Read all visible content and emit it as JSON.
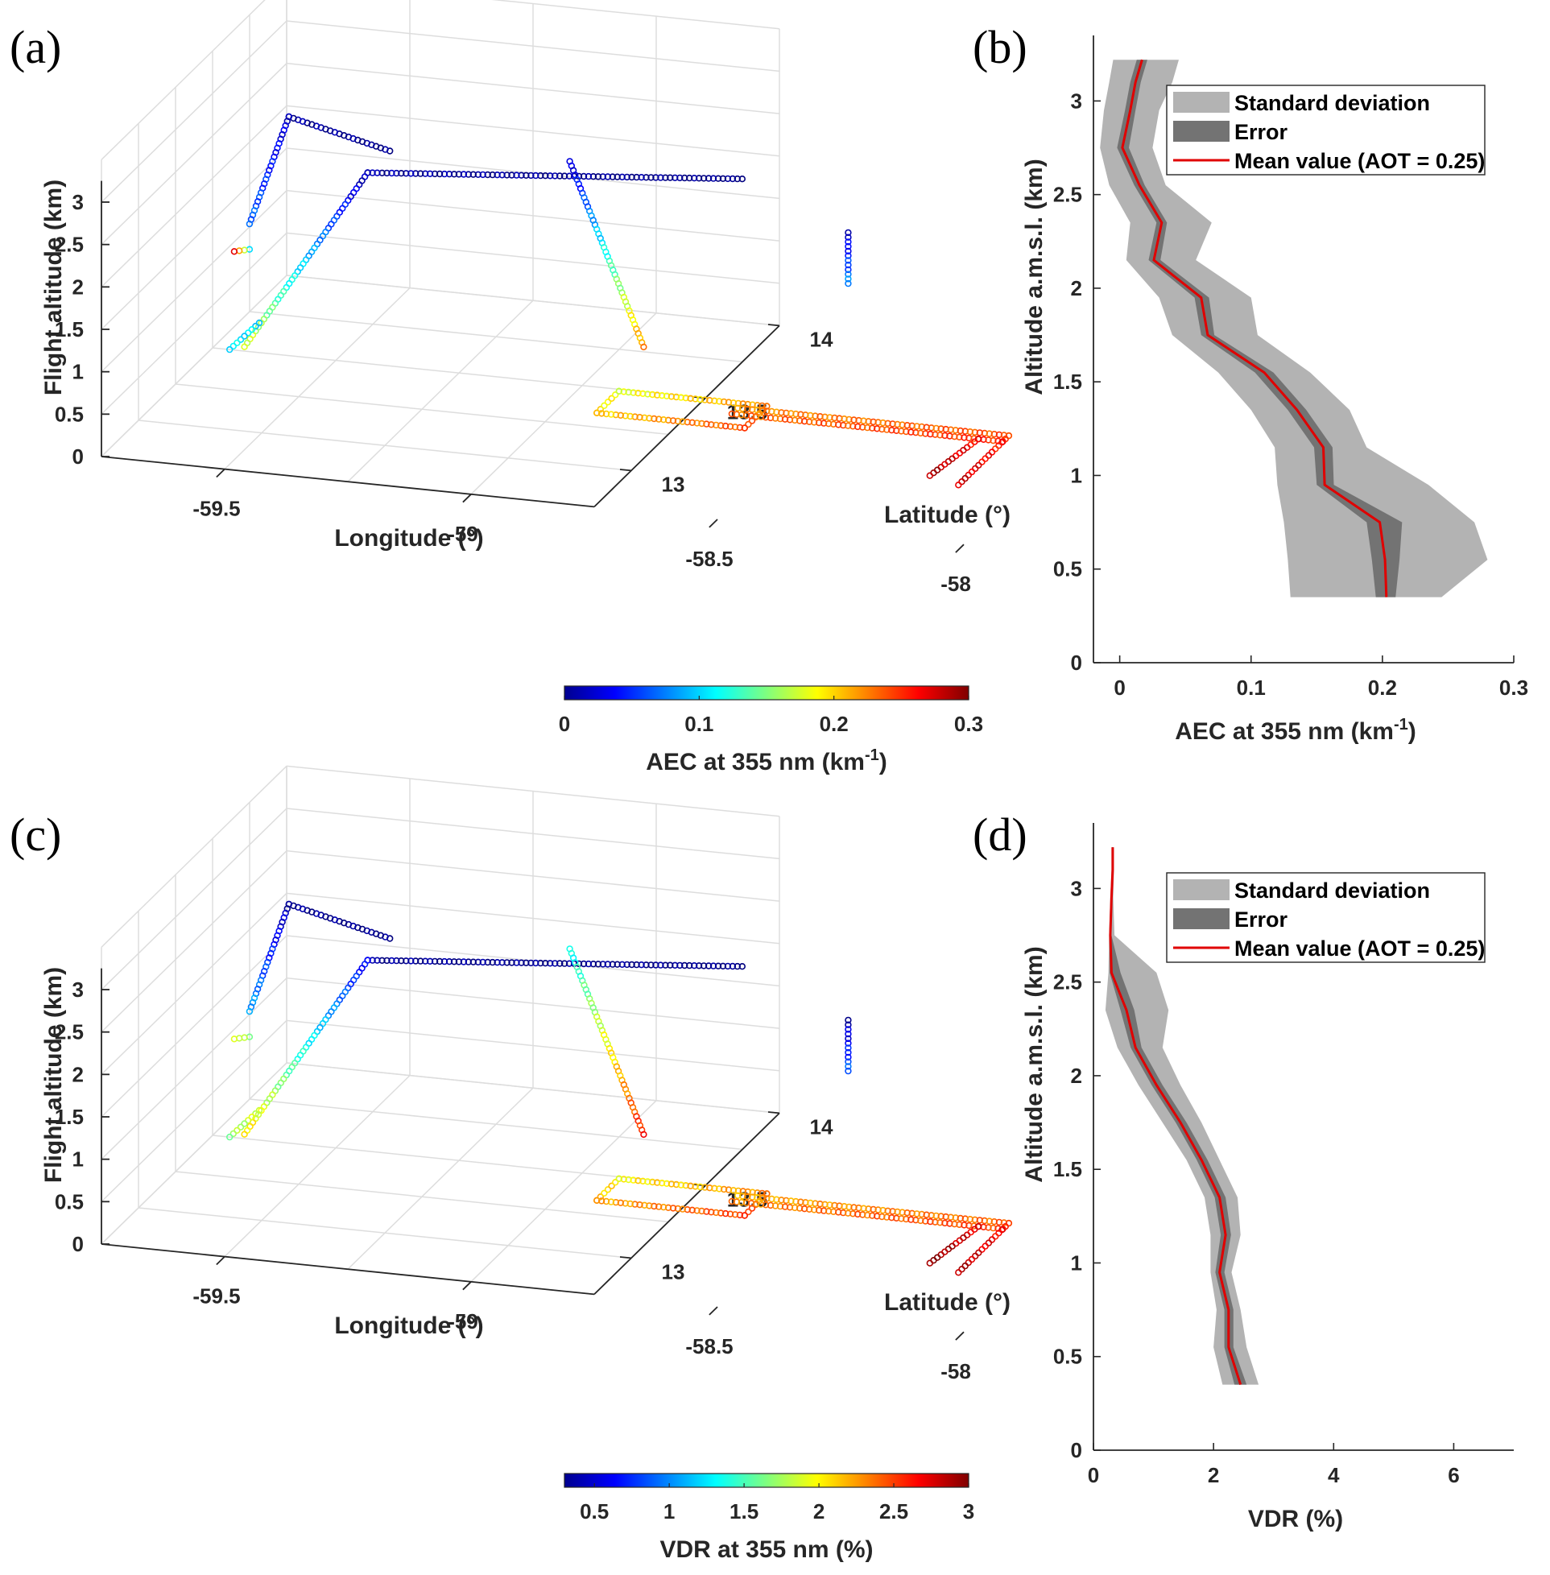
{
  "colors": {
    "std_fill": "#b3b3b3",
    "err_fill": "#737373",
    "mean_line": "#e00000",
    "axis": "#262626",
    "grid": "#dddddd"
  },
  "colormap": "jet",
  "chart_data": [
    {
      "panel": "(a)",
      "type": "scatter",
      "view": "3d",
      "xlabel": "Longitude (°)",
      "ylabel": "Latitude (°)",
      "zlabel": "Flight altitude (km)",
      "x_ticks": [
        "-59.5",
        "-59",
        "-58.5",
        "-58"
      ],
      "y_ticks": [
        "13",
        "13.5",
        "14"
      ],
      "z_ticks": [
        "0",
        "0.5",
        "1",
        "1.5",
        "2",
        "2.5",
        "3"
      ],
      "zlim": [
        0,
        3.3
      ],
      "grid": true,
      "colorbar": {
        "label": "AEC at 355 nm (km",
        "label_sup": "-1",
        "label_tail": ")",
        "ticks": [
          "0",
          "0.1",
          "0.2",
          "0.3"
        ],
        "range": [
          0,
          0.3
        ]
      },
      "tracks": [
        {
          "lon": [
            -59.3,
            -59.55
          ],
          "lat": [
            13.2,
            13.35
          ],
          "alt": [
            3.1,
            3.1
          ],
          "c": [
            0.0,
            0.01
          ]
        },
        {
          "lon": [
            -59.55,
            -59.66
          ],
          "lat": [
            13.35,
            13.45
          ],
          "alt": [
            3.1,
            1.6
          ],
          "c": [
            0.02,
            0.07
          ]
        },
        {
          "lon": [
            -59.66,
            -59.7
          ],
          "lat": [
            13.45,
            13.48
          ],
          "alt": [
            1.3,
            1.2
          ],
          "c": [
            0.1,
            0.28
          ]
        },
        {
          "lon": [
            -58.6,
            -59.3
          ],
          "lat": [
            13.25,
            13.05
          ],
          "alt": [
            3.1,
            3.1
          ],
          "c": [
            0.0,
            0.01
          ]
        },
        {
          "lon": [
            -59.3,
            -59.55
          ],
          "lat": [
            13.05,
            13.05
          ],
          "alt": [
            3.1,
            0.9
          ],
          "c": [
            0.01,
            0.18
          ]
        },
        {
          "lon": [
            -59.52,
            -59.58
          ],
          "lat": [
            13.05,
            13.05
          ],
          "alt": [
            1.2,
            0.85
          ],
          "c": [
            0.1,
            0.11
          ]
        },
        {
          "lon": [
            -58.95,
            -58.8
          ],
          "lat": [
            13.25,
            13.25
          ],
          "alt": [
            3.1,
            1.0
          ],
          "c": [
            0.02,
            0.22
          ]
        },
        {
          "lon": [
            -58.4,
            -58.4
          ],
          "lat": [
            13.3,
            13.3
          ],
          "alt": [
            2.5,
            1.9
          ],
          "c": [
            0.02,
            0.08
          ]
        },
        {
          "lon": [
            -58.85,
            -58.55,
            -58.55,
            -58.85,
            -58.85
          ],
          "lat": [
            13.25,
            13.25,
            13.1,
            13.1,
            13.25
          ],
          "alt": [
            0.45,
            0.45,
            0.45,
            0.45,
            0.45
          ],
          "c": [
            0.18,
            0.22,
            0.24,
            0.2,
            0.18
          ]
        },
        {
          "lon": [
            -58.6,
            -58.05
          ],
          "lat": [
            13.22,
            13.22
          ],
          "alt": [
            0.45,
            0.45
          ],
          "c": [
            0.22,
            0.24
          ]
        },
        {
          "lon": [
            -58.6,
            -58.05
          ],
          "lat": [
            13.18,
            13.18
          ],
          "alt": [
            0.45,
            0.45
          ],
          "c": [
            0.23,
            0.25
          ]
        },
        {
          "lon": [
            -58.05,
            -58.05
          ],
          "lat": [
            13.22,
            12.88
          ],
          "alt": [
            0.45,
            0.45
          ],
          "c": [
            0.25,
            0.28
          ]
        },
        {
          "lon": [
            -58.1,
            -58.12
          ],
          "lat": [
            13.18,
            12.92
          ],
          "alt": [
            0.45,
            0.45
          ],
          "c": [
            0.26,
            0.29
          ]
        }
      ]
    },
    {
      "panel": "(b)",
      "type": "line",
      "xlabel": "AEC at 355 nm (km",
      "xlabel_sup": "-1",
      "xlabel_tail": ")",
      "ylabel": "Altitude a.m.s.l. (km)",
      "xlim": [
        -0.02,
        0.3
      ],
      "ylim": [
        0,
        3.35
      ],
      "x_ticks": [
        0,
        0.1,
        0.2,
        0.3
      ],
      "y_ticks": [
        0,
        0.5,
        1,
        1.5,
        2,
        2.5,
        3
      ],
      "legend": {
        "position": "top-right",
        "entries": [
          "Standard deviation",
          "Error",
          "Mean value (AOT = 0.25)"
        ]
      },
      "altitude": [
        0.35,
        0.55,
        0.75,
        0.95,
        1.15,
        1.35,
        1.55,
        1.75,
        1.95,
        2.15,
        2.35,
        2.55,
        2.75,
        2.95,
        3.1,
        3.22
      ],
      "mean": [
        0.203,
        0.202,
        0.198,
        0.156,
        0.155,
        0.135,
        0.11,
        0.067,
        0.062,
        0.026,
        0.032,
        0.015,
        0.002,
        0.008,
        0.012,
        0.017
      ],
      "std_low": [
        0.13,
        0.128,
        0.125,
        0.12,
        0.118,
        0.1,
        0.075,
        0.04,
        0.03,
        0.005,
        0.008,
        -0.008,
        -0.015,
        -0.012,
        -0.008,
        -0.005
      ],
      "std_high": [
        0.245,
        0.28,
        0.27,
        0.235,
        0.188,
        0.175,
        0.145,
        0.105,
        0.1,
        0.058,
        0.07,
        0.035,
        0.025,
        0.03,
        0.04,
        0.045
      ],
      "err_low": [
        0.195,
        0.192,
        0.188,
        0.15,
        0.148,
        0.128,
        0.103,
        0.062,
        0.057,
        0.022,
        0.028,
        0.011,
        -0.002,
        0.004,
        0.008,
        0.013
      ],
      "err_high": [
        0.21,
        0.213,
        0.215,
        0.163,
        0.162,
        0.142,
        0.117,
        0.072,
        0.068,
        0.031,
        0.036,
        0.019,
        0.007,
        0.012,
        0.016,
        0.021
      ]
    },
    {
      "panel": "(c)",
      "type": "scatter",
      "view": "3d",
      "xlabel": "Longitude (°)",
      "ylabel": "Latitude (°)",
      "zlabel": "Flight altitude (km)",
      "x_ticks": [
        "-59.5",
        "-59",
        "-58.5",
        "-58"
      ],
      "y_ticks": [
        "13",
        "13.5",
        "14"
      ],
      "z_ticks": [
        "0",
        "0.5",
        "1",
        "1.5",
        "2",
        "2.5",
        "3"
      ],
      "zlim": [
        0,
        3.3
      ],
      "grid": true,
      "colorbar": {
        "label": "VDR at 355 nm (%)",
        "label_sup": "",
        "label_tail": "",
        "ticks": [
          "0.5",
          "1",
          "1.5",
          "2",
          "2.5",
          "3"
        ],
        "range": [
          0.3,
          3.0
        ]
      },
      "tracks": [
        {
          "lon": [
            -59.3,
            -59.55
          ],
          "lat": [
            13.2,
            13.35
          ],
          "alt": [
            3.1,
            3.1
          ],
          "c": [
            0.3,
            0.35
          ]
        },
        {
          "lon": [
            -59.55,
            -59.66
          ],
          "lat": [
            13.35,
            13.45
          ],
          "alt": [
            3.1,
            1.6
          ],
          "c": [
            0.4,
            1.1
          ]
        },
        {
          "lon": [
            -59.66,
            -59.7
          ],
          "lat": [
            13.45,
            13.48
          ],
          "alt": [
            1.3,
            1.2
          ],
          "c": [
            1.6,
            2.0
          ]
        },
        {
          "lon": [
            -58.6,
            -59.3
          ],
          "lat": [
            13.25,
            13.05
          ],
          "alt": [
            3.1,
            3.1
          ],
          "c": [
            0.3,
            0.35
          ]
        },
        {
          "lon": [
            -59.3,
            -59.55
          ],
          "lat": [
            13.05,
            13.05
          ],
          "alt": [
            3.1,
            0.9
          ],
          "c": [
            0.6,
            2.1
          ]
        },
        {
          "lon": [
            -59.52,
            -59.58
          ],
          "lat": [
            13.05,
            13.05
          ],
          "alt": [
            1.2,
            0.85
          ],
          "c": [
            1.9,
            1.7
          ]
        },
        {
          "lon": [
            -58.95,
            -58.8
          ],
          "lat": [
            13.25,
            13.25
          ],
          "alt": [
            3.1,
            1.0
          ],
          "c": [
            1.3,
            2.6
          ]
        },
        {
          "lon": [
            -58.4,
            -58.4
          ],
          "lat": [
            13.3,
            13.3
          ],
          "alt": [
            2.5,
            1.9
          ],
          "c": [
            0.4,
            0.9
          ]
        },
        {
          "lon": [
            -58.85,
            -58.55,
            -58.55,
            -58.85,
            -58.85
          ],
          "lat": [
            13.25,
            13.25,
            13.1,
            13.1,
            13.25
          ],
          "alt": [
            0.45,
            0.45,
            0.45,
            0.45,
            0.45
          ],
          "c": [
            2.0,
            2.3,
            2.5,
            2.2,
            2.0
          ]
        },
        {
          "lon": [
            -58.6,
            -58.05
          ],
          "lat": [
            13.22,
            13.22
          ],
          "alt": [
            0.45,
            0.45
          ],
          "c": [
            2.2,
            2.4
          ]
        },
        {
          "lon": [
            -58.6,
            -58.05
          ],
          "lat": [
            13.18,
            13.18
          ],
          "alt": [
            0.45,
            0.45
          ],
          "c": [
            2.3,
            2.5
          ]
        },
        {
          "lon": [
            -58.05,
            -58.05
          ],
          "lat": [
            13.22,
            12.88
          ],
          "alt": [
            0.45,
            0.45
          ],
          "c": [
            2.6,
            2.9
          ]
        },
        {
          "lon": [
            -58.1,
            -58.12
          ],
          "lat": [
            13.18,
            12.92
          ],
          "alt": [
            0.45,
            0.45
          ],
          "c": [
            2.7,
            3.0
          ]
        }
      ]
    },
    {
      "panel": "(d)",
      "type": "line",
      "xlabel": "VDR (%)",
      "xlabel_sup": "",
      "xlabel_tail": "",
      "ylabel": "Altitude a.m.s.l. (km)",
      "xlim": [
        0,
        7
      ],
      "ylim": [
        0,
        3.35
      ],
      "x_ticks": [
        0,
        2,
        4,
        6
      ],
      "y_ticks": [
        0,
        0.5,
        1,
        1.5,
        2,
        2.5,
        3
      ],
      "legend": {
        "position": "top-right",
        "entries": [
          "Standard deviation",
          "Error",
          "Mean value (AOT = 0.25)"
        ]
      },
      "altitude": [
        0.35,
        0.55,
        0.75,
        0.95,
        1.15,
        1.35,
        1.55,
        1.75,
        1.95,
        2.15,
        2.35,
        2.55,
        2.75,
        2.95,
        3.1,
        3.22
      ],
      "mean": [
        2.45,
        2.25,
        2.25,
        2.1,
        2.2,
        2.1,
        1.8,
        1.45,
        1.05,
        0.7,
        0.55,
        0.3,
        0.28,
        0.3,
        0.32,
        0.32
      ],
      "std_low": [
        2.15,
        2.0,
        2.05,
        1.95,
        1.95,
        1.85,
        1.55,
        1.15,
        0.75,
        0.4,
        0.2,
        0.25,
        0.26,
        0.28,
        0.3,
        0.3
      ],
      "std_high": [
        2.75,
        2.55,
        2.45,
        2.3,
        2.45,
        2.4,
        2.1,
        1.8,
        1.45,
        1.15,
        1.25,
        1.05,
        0.35,
        0.33,
        0.34,
        0.34
      ],
      "err_low": [
        2.35,
        2.18,
        2.18,
        2.03,
        2.12,
        2.02,
        1.72,
        1.37,
        0.97,
        0.62,
        0.45,
        0.27,
        0.27,
        0.29,
        0.31,
        0.31
      ],
      "err_high": [
        2.55,
        2.33,
        2.33,
        2.18,
        2.29,
        2.2,
        1.9,
        1.55,
        1.15,
        0.8,
        0.68,
        0.45,
        0.3,
        0.31,
        0.33,
        0.33
      ]
    }
  ]
}
